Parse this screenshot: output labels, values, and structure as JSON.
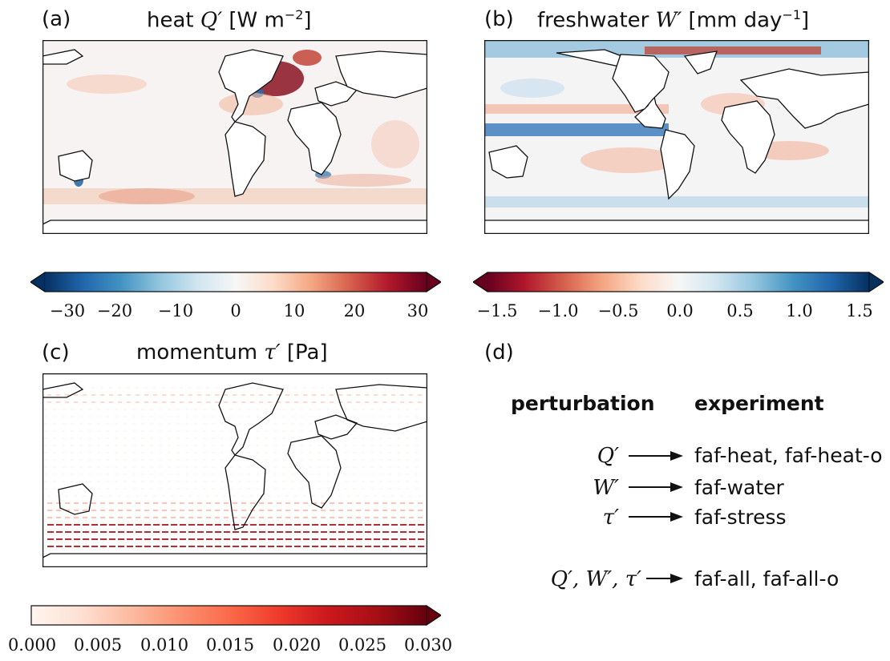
{
  "panels": {
    "a": {
      "letter": "(a)",
      "prefix": "heat ",
      "symbol": "Q′",
      "unit_open": "[W m",
      "unit_sup": "−2",
      "unit_close": "]"
    },
    "b": {
      "letter": "(b)",
      "prefix": "freshwater ",
      "symbol": "W′",
      "unit_open": "[mm day",
      "unit_sup": "−1",
      "unit_close": "]"
    },
    "c": {
      "letter": "(c)",
      "prefix": "momentum ",
      "symbol": "τ′",
      "unit_open": "[Pa",
      "unit_sup": "",
      "unit_close": "]"
    },
    "d": {
      "letter": "(d)"
    }
  },
  "colorbars": {
    "a": {
      "cmap": "RdBu_r",
      "ticks": [
        "−30",
        "−20",
        "−10",
        "0",
        "10",
        "20",
        "30"
      ],
      "range": [
        -30,
        30
      ],
      "extend": "both",
      "colors": [
        "#053061",
        "#2166ac",
        "#4393c3",
        "#92c5de",
        "#d1e5f0",
        "#f7f7f7",
        "#fddbc7",
        "#f4a582",
        "#d6604d",
        "#b2182b",
        "#67001f"
      ]
    },
    "b": {
      "cmap": "RdBu",
      "ticks": [
        "−1.5",
        "−1.0",
        "−0.5",
        "0.0",
        "0.5",
        "1.0",
        "1.5"
      ],
      "range": [
        -1.5,
        1.5
      ],
      "extend": "both",
      "colors": [
        "#67001f",
        "#b2182b",
        "#d6604d",
        "#f4a582",
        "#fddbc7",
        "#f7f7f7",
        "#d1e5f0",
        "#92c5de",
        "#4393c3",
        "#2166ac",
        "#053061"
      ]
    },
    "c": {
      "cmap": "Reds",
      "ticks": [
        "0.000",
        "0.005",
        "0.010",
        "0.015",
        "0.020",
        "0.025",
        "0.030"
      ],
      "range": [
        0,
        0.03
      ],
      "extend": "max",
      "colors": [
        "#fff5f0",
        "#fee0d2",
        "#fcbba1",
        "#fc9272",
        "#fb6a4a",
        "#ef3b2c",
        "#cb181d",
        "#a50f15",
        "#67000d"
      ]
    }
  },
  "table": {
    "header_perturbation": "perturbation",
    "header_experiment": "experiment",
    "rows": [
      {
        "symbol": "Q′",
        "experiment": "faf-heat, faf-heat-o"
      },
      {
        "symbol": "W′",
        "experiment": "faf-water"
      },
      {
        "symbol": "τ′",
        "experiment": "faf-stress"
      },
      {
        "symbol": "Q′, W′, τ′",
        "experiment": "faf-all, faf-all-o"
      }
    ]
  }
}
